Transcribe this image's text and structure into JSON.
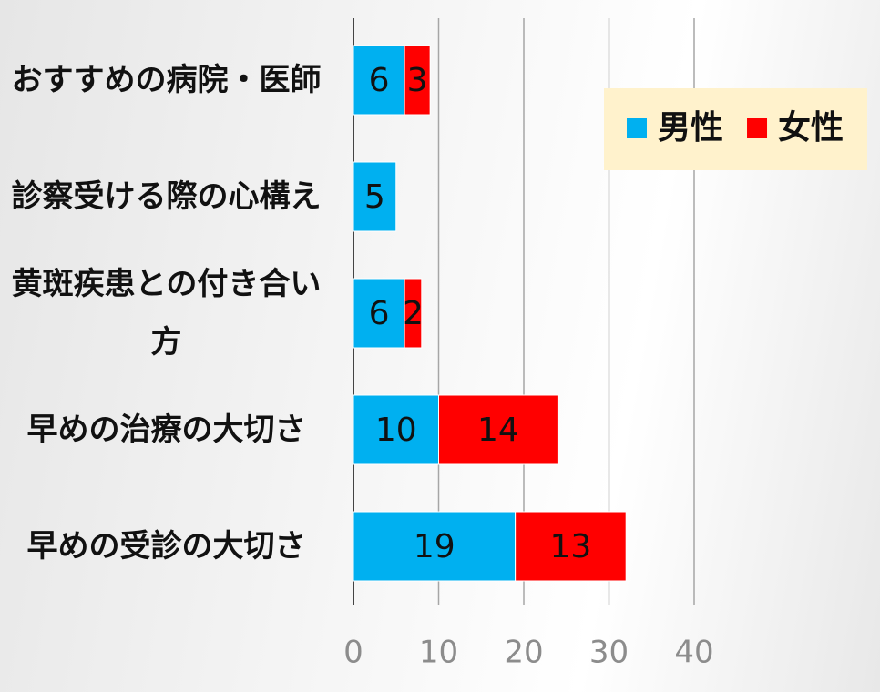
{
  "chart_data": {
    "type": "stacked-barh",
    "categories": [
      "おすすめの病院・医師",
      "診察受ける際の心構え",
      "黄斑疾患との付き合い方",
      "早めの治療の大切さ",
      "早めの受診の大切さ"
    ],
    "series": [
      {
        "name": "男性",
        "color": "#00b0f0",
        "values": [
          6,
          5,
          6,
          10,
          19
        ]
      },
      {
        "name": "女性",
        "color": "#ff0000",
        "values": [
          3,
          null,
          2,
          14,
          13
        ]
      }
    ],
    "xlim": [
      0,
      40
    ],
    "xticks": [
      0,
      10,
      20,
      30,
      40
    ],
    "grid": true,
    "legend": "upper right"
  }
}
